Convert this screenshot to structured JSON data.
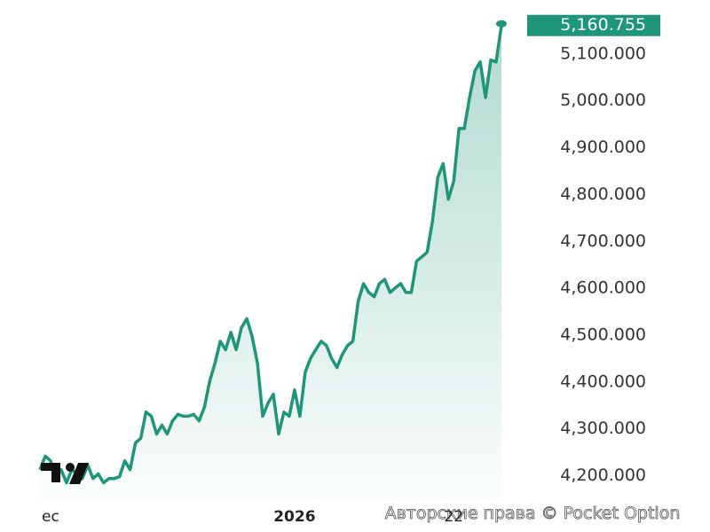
{
  "chart_data": {
    "type": "area-line",
    "categories": [
      null,
      null,
      "ec",
      null,
      null,
      null,
      null,
      null,
      null,
      null,
      null,
      null,
      null,
      null,
      null,
      null,
      null,
      null,
      null,
      null,
      null,
      null,
      null,
      null,
      null,
      null,
      null,
      null,
      null,
      null,
      null,
      null,
      null,
      null,
      null,
      null,
      null,
      null,
      null,
      null,
      null,
      null,
      null,
      null,
      null,
      null,
      null,
      null,
      "2026",
      null,
      null,
      null,
      null,
      null,
      null,
      null,
      null,
      null,
      null,
      null,
      null,
      null,
      null,
      null,
      null,
      null,
      null,
      null,
      null,
      null,
      null,
      null,
      null,
      null,
      null,
      null,
      null,
      null,
      "22",
      null,
      null,
      null,
      null,
      null,
      null,
      null,
      null,
      null
    ],
    "series": [
      {
        "color": "#1f9678",
        "values": [
          4213,
          4242,
          4232,
          4194,
          4213,
          4185,
          4213,
          4204,
          4194,
          4223,
          4194,
          4204,
          4185,
          4194,
          4194,
          4198,
          4232,
          4213,
          4270,
          4280,
          4336,
          4327,
          4289,
          4308,
          4289,
          4317,
          4331,
          4327,
          4327,
          4331,
          4317,
          4346,
          4402,
          4440,
          4487,
          4469,
          4506,
          4469,
          4516,
          4535,
          4497,
          4440,
          4327,
          4355,
          4374,
          4289,
          4336,
          4327,
          4383,
          4327,
          4421,
          4450,
          4469,
          4487,
          4478,
          4450,
          4431,
          4459,
          4478,
          4487,
          4572,
          4610,
          4591,
          4582,
          4610,
          4619,
          4591,
          4601,
          4610,
          4591,
          4591,
          4658,
          4667,
          4677,
          4743,
          4837,
          4866,
          4790,
          4828,
          4941,
          4941,
          5007,
          5064,
          5083,
          5007,
          5087,
          5083,
          5160.755
        ]
      }
    ],
    "last_value_label": "5,160.755",
    "ylim": [
      4150,
      5200
    ],
    "yticks": [
      {
        "value": 4200,
        "label": "4,200.000"
      },
      {
        "value": 4300,
        "label": "4,300.000"
      },
      {
        "value": 4400,
        "label": "4,400.000"
      },
      {
        "value": 4500,
        "label": "4,500.000"
      },
      {
        "value": 4600,
        "label": "4,600.000"
      },
      {
        "value": 4700,
        "label": "4,700.000"
      },
      {
        "value": 4800,
        "label": "4,800.000"
      },
      {
        "value": 4900,
        "label": "4,900.000"
      },
      {
        "value": 5000,
        "label": "5,000.000"
      },
      {
        "value": 5100,
        "label": "5,100.000"
      }
    ],
    "watermark": "Авторские права © Pocket Option"
  }
}
